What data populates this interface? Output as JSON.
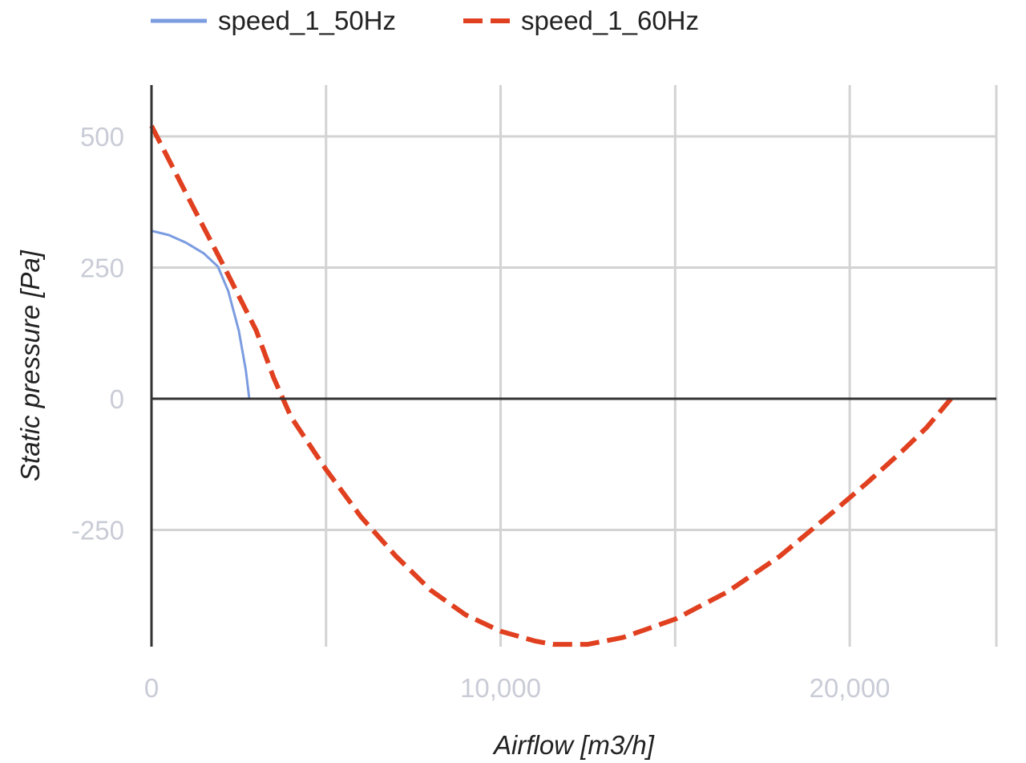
{
  "chart_data": {
    "type": "line",
    "xlabel": "Airflow [m3/h]",
    "ylabel": "Static pressure [Pa]",
    "xlim": [
      0,
      24200
    ],
    "ylim": [
      -470,
      600
    ],
    "x_ticks": [
      0,
      10000,
      20000
    ],
    "x_tick_labels": [
      "0",
      "10,000",
      "20,000"
    ],
    "x_gridlines": [
      0,
      5000,
      10000,
      15000,
      20000,
      24200
    ],
    "y_ticks": [
      500,
      250,
      0,
      -250
    ],
    "y_tick_labels": [
      "500",
      "250",
      "0",
      "-250"
    ],
    "grid": true,
    "legend": "top-left",
    "series": [
      {
        "name": "speed_1_50Hz",
        "color": "#7b9ce0",
        "style": "solid",
        "points": [
          [
            0,
            320
          ],
          [
            500,
            312
          ],
          [
            1000,
            297
          ],
          [
            1500,
            277
          ],
          [
            1900,
            252
          ],
          [
            2200,
            205
          ],
          [
            2500,
            130
          ],
          [
            2700,
            55
          ],
          [
            2800,
            0
          ]
        ]
      },
      {
        "name": "speed_1_60Hz",
        "color": "#e0401f",
        "style": "dashed",
        "points": [
          [
            0,
            520
          ],
          [
            1000,
            390
          ],
          [
            2000,
            262
          ],
          [
            3000,
            130
          ],
          [
            3500,
            40
          ],
          [
            4000,
            -35
          ],
          [
            5000,
            -135
          ],
          [
            6000,
            -225
          ],
          [
            7000,
            -300
          ],
          [
            8000,
            -365
          ],
          [
            9000,
            -412
          ],
          [
            10000,
            -443
          ],
          [
            11000,
            -462
          ],
          [
            11500,
            -468
          ],
          [
            12500,
            -468
          ],
          [
            13500,
            -455
          ],
          [
            15000,
            -420
          ],
          [
            16500,
            -368
          ],
          [
            18000,
            -300
          ],
          [
            19500,
            -217
          ],
          [
            20500,
            -160
          ],
          [
            21500,
            -100
          ],
          [
            22200,
            -55
          ],
          [
            22900,
            0
          ]
        ]
      }
    ]
  }
}
